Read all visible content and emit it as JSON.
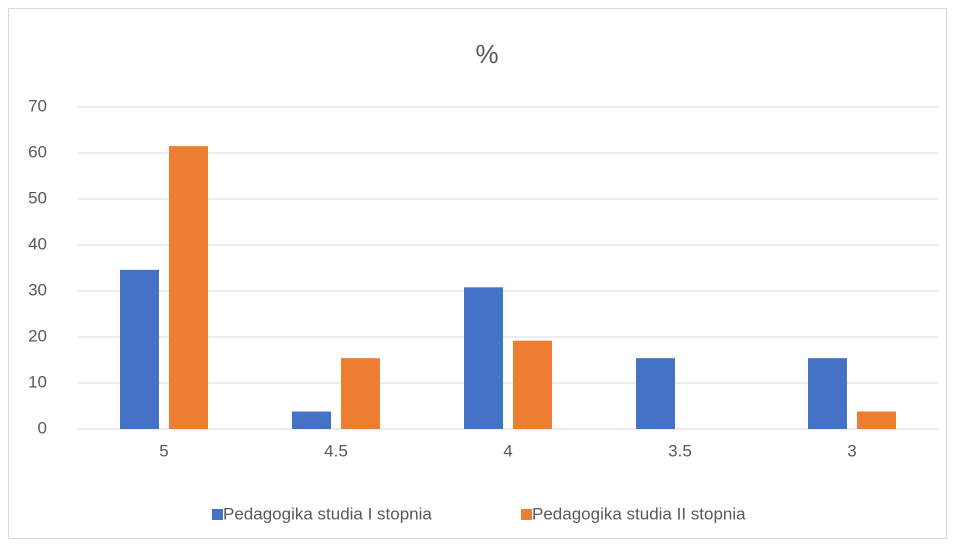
{
  "chart_data": {
    "type": "bar",
    "title": "%",
    "categories": [
      "5",
      "4.5",
      "4",
      "3.5",
      "3"
    ],
    "series": [
      {
        "name": "Pedagogika studia I stopnia",
        "color": "#4472c4",
        "values": [
          34.6,
          3.8,
          30.8,
          15.4,
          15.4
        ]
      },
      {
        "name": "Pedagogika studia II stopnia",
        "color": "#ed7d31",
        "values": [
          61.5,
          15.4,
          19.2,
          0,
          3.8
        ]
      }
    ],
    "ylim": [
      0,
      70
    ],
    "yticks": [
      0,
      10,
      20,
      30,
      40,
      50,
      60,
      70
    ],
    "grid": true,
    "legend": "bottom"
  }
}
